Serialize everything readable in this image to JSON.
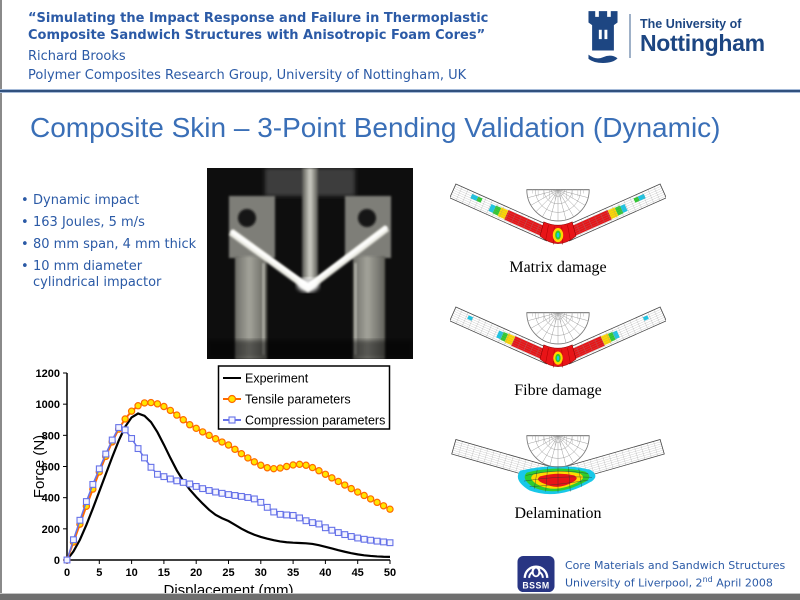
{
  "header": {
    "title_line1": "“Simulating the Impact Response and Failure in Thermoplastic",
    "title_line2": "Composite Sandwich Structures with Anisotropic Foam Cores”",
    "author": "Richard Brooks",
    "affiliation": "Polymer Composites Research Group, University of Nottingham, UK"
  },
  "logo": {
    "line1": "The University of",
    "line2": "Nottingham"
  },
  "slide": {
    "title": "Composite Skin – 3-Point Bending Validation (Dynamic)"
  },
  "bullets": {
    "item1": "Dynamic impact",
    "item2": "163 Joules, 5 m/s",
    "item3": "80 mm span, 4 mm thick",
    "item4_line1": "10 mm diameter",
    "item4_line2": "cylindrical impactor"
  },
  "fea": {
    "label1": "Matrix damage",
    "label2": "Fibre damage",
    "label3": "Delamination"
  },
  "footer": {
    "logo_text": "BSSM",
    "line1": "Core Materials and Sandwich Structures",
    "line2_pre": "University of Liverpool, 2",
    "line2_sup": "nd",
    "line2_post": " April 2008"
  },
  "colors": {
    "header_blue": "#2B5AA6",
    "title_blue": "#3A6FB7",
    "logo_navy": "#1D4682",
    "bssm_navy": "#283583",
    "experiment": "#000000",
    "tensile": "#FF6A00",
    "tensile_fill": "#FFE500",
    "compression": "#6672E8",
    "compression_fill": "#F4F4FF"
  },
  "chart_data": {
    "type": "line",
    "title": "",
    "xlabel": "Displacement (mm)",
    "ylabel": "Force (N)",
    "xlim": [
      0,
      50
    ],
    "ylim": [
      0,
      1200
    ],
    "xticks": [
      0,
      5,
      10,
      15,
      20,
      25,
      30,
      35,
      40,
      45,
      50
    ],
    "yticks": [
      0,
      200,
      400,
      600,
      800,
      1000,
      1200
    ],
    "grid": false,
    "legend_position": "top-right",
    "x": [
      0,
      1,
      2,
      3,
      4,
      5,
      6,
      7,
      8,
      9,
      10,
      11,
      12,
      13,
      14,
      15,
      16,
      17,
      18,
      19,
      20,
      21,
      22,
      23,
      24,
      25,
      26,
      27,
      28,
      29,
      30,
      31,
      32,
      33,
      34,
      35,
      36,
      37,
      38,
      39,
      40,
      41,
      42,
      43,
      44,
      45,
      46,
      47,
      48,
      49,
      50
    ],
    "series": [
      {
        "name": "Experiment",
        "color": "#000000",
        "marker": "none",
        "marker_fill": "none",
        "y": [
          0,
          55,
          130,
          225,
          330,
          440,
          550,
          660,
          765,
          855,
          915,
          940,
          925,
          885,
          820,
          740,
          655,
          575,
          508,
          452,
          405,
          362,
          322,
          290,
          268,
          250,
          226,
          201,
          180,
          162,
          148,
          137,
          127,
          119,
          114,
          111,
          109,
          107,
          103,
          95,
          85,
          74,
          63,
          53,
          44,
          36,
          30,
          26,
          23,
          21,
          20
        ]
      },
      {
        "name": "Tensile parameters",
        "color": "#FF6A00",
        "marker": "circle",
        "marker_fill": "#FFE500",
        "y": [
          0,
          115,
          230,
          345,
          455,
          565,
          665,
          758,
          840,
          905,
          955,
          990,
          1008,
          1010,
          1002,
          985,
          960,
          930,
          900,
          868,
          845,
          822,
          800,
          778,
          757,
          738,
          710,
          682,
          655,
          630,
          608,
          592,
          586,
          590,
          600,
          610,
          614,
          608,
          593,
          573,
          550,
          527,
          504,
          481,
          458,
          436,
          414,
          392,
          370,
          348,
          326
        ]
      },
      {
        "name": "Compression parameters",
        "color": "#6672E8",
        "marker": "square",
        "marker_fill": "#F4F4FF",
        "y": [
          0,
          130,
          255,
          375,
          485,
          585,
          680,
          770,
          850,
          835,
          780,
          715,
          655,
          595,
          550,
          535,
          520,
          508,
          498,
          488,
          472,
          458,
          446,
          436,
          428,
          420,
          414,
          408,
          401,
          392,
          370,
          338,
          308,
          293,
          289,
          286,
          270,
          252,
          240,
          231,
          207,
          191,
          176,
          163,
          151,
          141,
          133,
          127,
          121,
          116,
          111
        ]
      }
    ]
  }
}
